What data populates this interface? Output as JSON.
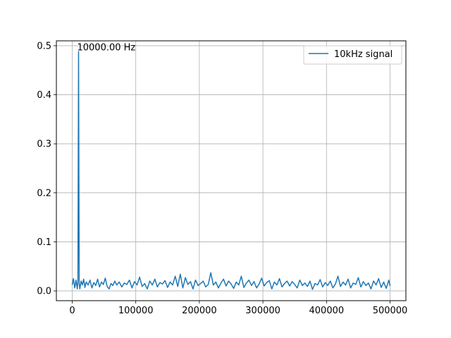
{
  "chart_data": {
    "type": "line",
    "title": "",
    "xlabel": "",
    "ylabel": "",
    "xlim": [
      -24900,
      524900
    ],
    "ylim": [
      -0.02,
      0.51
    ],
    "xticks": [
      0,
      100000,
      200000,
      300000,
      400000,
      500000
    ],
    "xtick_labels": [
      "0",
      "100000",
      "200000",
      "300000",
      "400000",
      "500000"
    ],
    "yticks": [
      0.0,
      0.1,
      0.2,
      0.3,
      0.4,
      0.5
    ],
    "ytick_labels": [
      "0.0",
      "0.1",
      "0.2",
      "0.3",
      "0.4",
      "0.5"
    ],
    "grid": true,
    "legend": "top-right",
    "series": [
      {
        "name": "10kHz signal",
        "color": "#1f77b4",
        "x": [
          0,
          2000,
          4000,
          6000,
          8000,
          9000,
          10000,
          11000,
          12000,
          14000,
          16000,
          18000,
          20000,
          22000,
          25000,
          28000,
          31000,
          34000,
          37000,
          40000,
          43000,
          46000,
          49000,
          52000,
          55000,
          58000,
          61000,
          64000,
          67000,
          70000,
          74000,
          78000,
          82000,
          86000,
          90000,
          94000,
          98000,
          102000,
          106000,
          110000,
          114000,
          118000,
          122000,
          126000,
          130000,
          134000,
          138000,
          142000,
          146000,
          150000,
          154000,
          158000,
          162000,
          166000,
          170000,
          174000,
          178000,
          182000,
          186000,
          190000,
          194000,
          198000,
          202000,
          206000,
          210000,
          214000,
          218000,
          222000,
          226000,
          230000,
          234000,
          238000,
          242000,
          246000,
          250000,
          254000,
          258000,
          262000,
          266000,
          270000,
          274000,
          278000,
          282000,
          286000,
          290000,
          294000,
          298000,
          302000,
          306000,
          310000,
          314000,
          318000,
          322000,
          326000,
          330000,
          334000,
          338000,
          342000,
          346000,
          350000,
          354000,
          358000,
          362000,
          366000,
          370000,
          374000,
          378000,
          382000,
          386000,
          390000,
          394000,
          398000,
          402000,
          406000,
          410000,
          414000,
          418000,
          422000,
          426000,
          430000,
          434000,
          438000,
          442000,
          446000,
          450000,
          454000,
          458000,
          462000,
          466000,
          470000,
          474000,
          478000,
          482000,
          486000,
          490000,
          494000,
          498000,
          500000
        ],
        "y": [
          0.012,
          0.025,
          0.006,
          0.022,
          0.004,
          0.02,
          0.488,
          0.015,
          0.004,
          0.02,
          0.012,
          0.024,
          0.007,
          0.018,
          0.012,
          0.022,
          0.006,
          0.017,
          0.011,
          0.024,
          0.008,
          0.018,
          0.013,
          0.026,
          0.009,
          0.004,
          0.015,
          0.011,
          0.02,
          0.012,
          0.018,
          0.008,
          0.016,
          0.013,
          0.022,
          0.006,
          0.019,
          0.012,
          0.028,
          0.009,
          0.015,
          0.004,
          0.02,
          0.012,
          0.024,
          0.008,
          0.017,
          0.014,
          0.021,
          0.007,
          0.018,
          0.012,
          0.03,
          0.009,
          0.034,
          0.006,
          0.027,
          0.013,
          0.019,
          0.004,
          0.022,
          0.011,
          0.015,
          0.02,
          0.008,
          0.013,
          0.037,
          0.012,
          0.018,
          0.006,
          0.016,
          0.024,
          0.01,
          0.02,
          0.014,
          0.005,
          0.018,
          0.012,
          0.03,
          0.007,
          0.016,
          0.022,
          0.011,
          0.019,
          0.006,
          0.014,
          0.026,
          0.01,
          0.017,
          0.021,
          0.004,
          0.018,
          0.012,
          0.025,
          0.008,
          0.015,
          0.02,
          0.01,
          0.019,
          0.013,
          0.006,
          0.022,
          0.011,
          0.016,
          0.009,
          0.02,
          0.003,
          0.015,
          0.012,
          0.023,
          0.008,
          0.017,
          0.011,
          0.02,
          0.006,
          0.014,
          0.03,
          0.009,
          0.018,
          0.012,
          0.024,
          0.006,
          0.016,
          0.013,
          0.027,
          0.008,
          0.019,
          0.011,
          0.016,
          0.004,
          0.02,
          0.012,
          0.025,
          0.007,
          0.018,
          0.005,
          0.022,
          0.01
        ]
      }
    ],
    "annotations": [
      {
        "x": 10000,
        "y": 0.488,
        "text": "10000.00 Hz"
      }
    ]
  }
}
